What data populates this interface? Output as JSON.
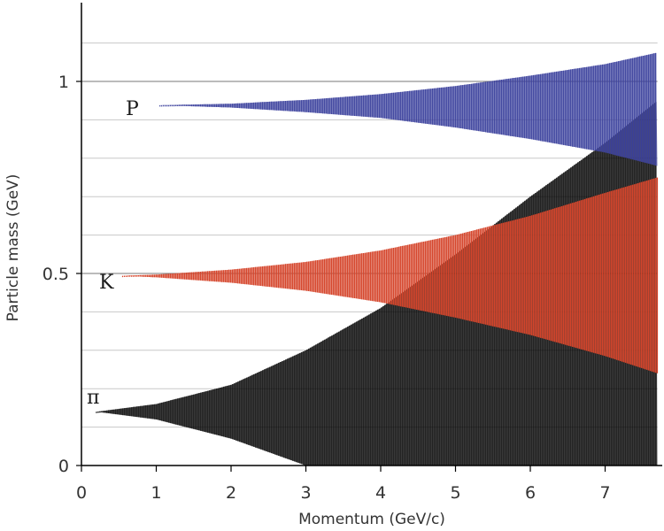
{
  "chart_data": {
    "type": "area",
    "title": "",
    "xlabel": "Momentum (GeV/c)",
    "ylabel": "Particle mass (GeV)",
    "xlim": [
      0,
      7.7
    ],
    "ylim": [
      0,
      1.2
    ],
    "x_ticks": [
      {
        "value": 0,
        "label": "0"
      },
      {
        "value": 1,
        "label": "1"
      },
      {
        "value": 2,
        "label": "2"
      },
      {
        "value": 3,
        "label": "3"
      },
      {
        "value": 4,
        "label": "4"
      },
      {
        "value": 5,
        "label": "5"
      },
      {
        "value": 6,
        "label": "6"
      },
      {
        "value": 7,
        "label": "7"
      }
    ],
    "y_ticks": [
      {
        "value": 0,
        "label": "0"
      },
      {
        "value": 0.5,
        "label": "0.5"
      },
      {
        "value": 1,
        "label": "1"
      }
    ],
    "gridlines_y": [
      0.1,
      0.2,
      0.3,
      0.4,
      0.5,
      0.6,
      0.7,
      0.8,
      0.9,
      1.0,
      1.1
    ],
    "series": [
      {
        "name": "π",
        "label": "π",
        "color": "#000000",
        "mass": 0.14,
        "x_start": 0.2,
        "x": [
          0.2,
          1,
          2,
          3,
          4,
          5,
          6,
          7,
          7.7
        ],
        "upper": [
          0.14,
          0.16,
          0.21,
          0.3,
          0.41,
          0.55,
          0.7,
          0.84,
          0.95
        ],
        "lower": [
          0.14,
          0.12,
          0.07,
          0.0,
          0.0,
          0.0,
          0.0,
          0.0,
          0.0
        ]
      },
      {
        "name": "K",
        "label": "K",
        "color": "#d6452b",
        "mass": 0.494,
        "x_start": 0.55,
        "x": [
          0.55,
          1,
          2,
          3,
          4,
          5,
          6,
          7,
          7.7
        ],
        "upper": [
          0.494,
          0.497,
          0.51,
          0.53,
          0.56,
          0.6,
          0.65,
          0.71,
          0.75
        ],
        "lower": [
          0.494,
          0.49,
          0.476,
          0.455,
          0.425,
          0.385,
          0.34,
          0.285,
          0.24
        ]
      },
      {
        "name": "P",
        "label": "P",
        "color": "#3a3f9c",
        "mass": 0.938,
        "x_start": 1.05,
        "x": [
          1.05,
          2,
          3,
          4,
          5,
          6,
          7,
          7.7
        ],
        "upper": [
          0.938,
          0.942,
          0.952,
          0.967,
          0.988,
          1.015,
          1.045,
          1.075
        ],
        "lower": [
          0.938,
          0.932,
          0.92,
          0.905,
          0.88,
          0.85,
          0.815,
          0.78
        ]
      }
    ]
  }
}
